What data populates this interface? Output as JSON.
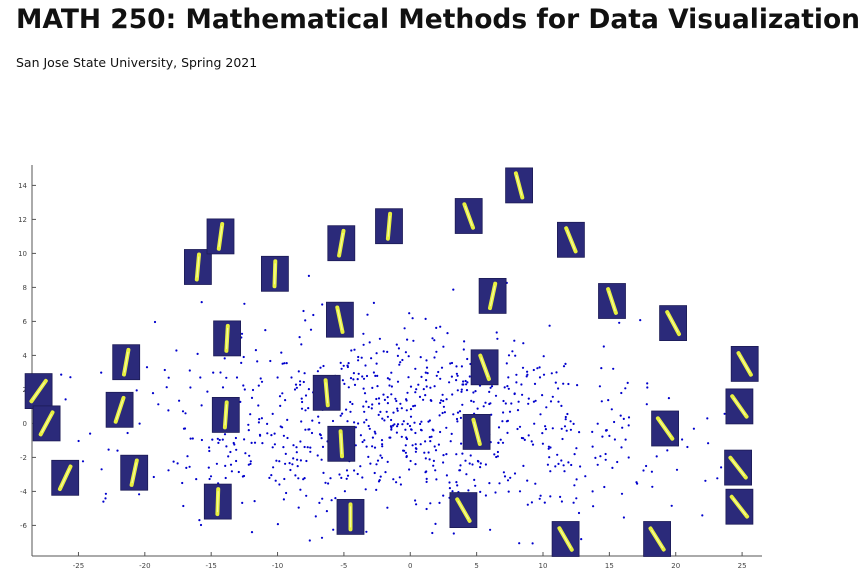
{
  "header": {
    "title": "MATH 250: Mathematical Methods for Data Visualization",
    "subtitle": "San Jose State University, Spring 2021"
  },
  "chart_data": {
    "type": "scatter",
    "title": "",
    "xlabel": "",
    "ylabel": "",
    "xlim": [
      -28.5,
      26.5
    ],
    "ylim": [
      -7.8,
      15.2
    ],
    "x_ticks": [
      -25,
      -20,
      -15,
      -10,
      -5,
      0,
      5,
      10,
      15,
      20,
      25
    ],
    "y_ticks": [
      -6,
      -4,
      -2,
      0,
      2,
      4,
      6,
      8,
      10,
      12,
      14
    ],
    "grid": false,
    "legend": "none",
    "point_color": "#0000cc",
    "thumbnail_background": "#2b2a7a",
    "stroke_color": "#e8f040",
    "n_points": 900,
    "thumbnails": [
      {
        "x": -28.0,
        "y": 1.9,
        "angle": 35
      },
      {
        "x": -27.4,
        "y": 0.0,
        "angle": 28
      },
      {
        "x": -26.0,
        "y": -3.2,
        "angle": 25
      },
      {
        "x": -21.4,
        "y": 3.6,
        "angle": 10
      },
      {
        "x": -21.9,
        "y": 0.8,
        "angle": 18
      },
      {
        "x": -20.8,
        "y": -2.9,
        "angle": 12
      },
      {
        "x": -16.0,
        "y": 9.2,
        "angle": 5
      },
      {
        "x": -14.3,
        "y": 11.0,
        "angle": 8
      },
      {
        "x": -13.8,
        "y": 5.0,
        "angle": 3
      },
      {
        "x": -13.9,
        "y": 0.5,
        "angle": 4
      },
      {
        "x": -14.5,
        "y": -4.6,
        "angle": 2
      },
      {
        "x": -10.2,
        "y": 8.8,
        "angle": 2
      },
      {
        "x": -5.2,
        "y": 10.6,
        "angle": 10
      },
      {
        "x": -5.3,
        "y": 6.1,
        "angle": -12
      },
      {
        "x": -6.3,
        "y": 1.8,
        "angle": -5
      },
      {
        "x": -5.2,
        "y": -1.2,
        "angle": -3
      },
      {
        "x": -4.5,
        "y": -5.5,
        "angle": 0
      },
      {
        "x": -1.6,
        "y": 11.6,
        "angle": 5
      },
      {
        "x": 4.4,
        "y": 12.2,
        "angle": -20
      },
      {
        "x": 6.2,
        "y": 7.5,
        "angle": 12
      },
      {
        "x": 5.6,
        "y": 3.3,
        "angle": -20
      },
      {
        "x": 5.0,
        "y": -0.5,
        "angle": -15
      },
      {
        "x": 4.0,
        "y": -5.1,
        "angle": -30
      },
      {
        "x": 8.2,
        "y": 14.0,
        "angle": -15
      },
      {
        "x": 12.1,
        "y": 10.8,
        "angle": -22
      },
      {
        "x": 15.2,
        "y": 7.2,
        "angle": -18
      },
      {
        "x": 19.8,
        "y": 5.9,
        "angle": -28
      },
      {
        "x": 19.2,
        "y": -0.3,
        "angle": -35
      },
      {
        "x": 11.7,
        "y": -6.8,
        "angle": -30
      },
      {
        "x": 18.6,
        "y": -6.8,
        "angle": -32
      },
      {
        "x": 25.2,
        "y": 3.5,
        "angle": -30
      },
      {
        "x": 24.8,
        "y": 1.0,
        "angle": -35
      },
      {
        "x": 24.7,
        "y": -2.6,
        "angle": -38
      },
      {
        "x": 24.8,
        "y": -4.9,
        "angle": -38
      }
    ]
  }
}
